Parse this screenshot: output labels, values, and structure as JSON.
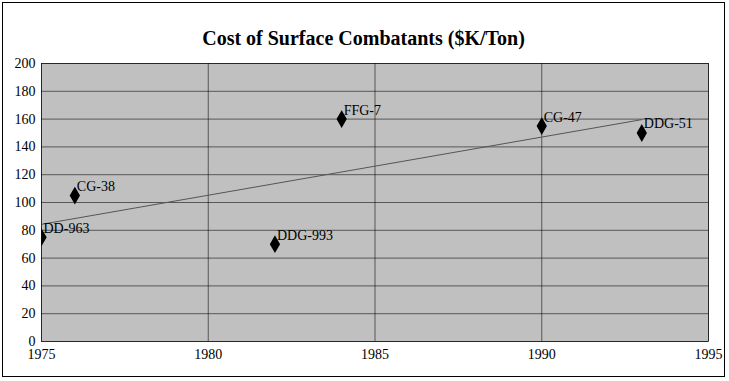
{
  "chart_data": {
    "type": "scatter",
    "title": "Cost of Surface Combatants ($K/Ton)",
    "x": [
      1975,
      1976,
      1982,
      1984,
      1990,
      1993
    ],
    "series": [
      {
        "type": "scatter",
        "marker": "diamond",
        "color": "#000000",
        "values": [
          75,
          105,
          70,
          160,
          155,
          150
        ],
        "labels": [
          "DD-963",
          "CG-38",
          "DDG-993",
          "FFG-7",
          "CG-47",
          "DDG-51"
        ]
      },
      {
        "type": "trend",
        "line_style": "solid",
        "color": "#555555"
      }
    ],
    "xlim": [
      1975,
      1995
    ],
    "xticks": [
      1975,
      1980,
      1985,
      1990,
      1995
    ],
    "ylim": [
      0,
      200
    ],
    "yticks": [
      0,
      20,
      40,
      60,
      80,
      100,
      120,
      140,
      160,
      180,
      200
    ],
    "grid": true
  }
}
